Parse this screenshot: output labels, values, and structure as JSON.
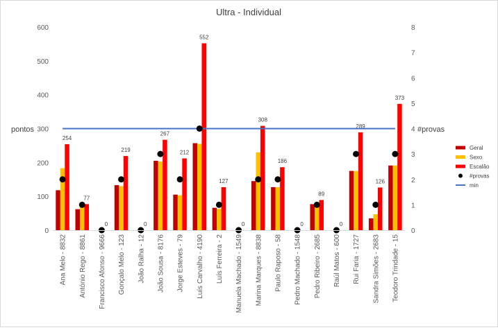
{
  "chart_data": {
    "type": "bar",
    "title": "Ultra - Individual",
    "ylabel": "pontos",
    "y2label": "#provas",
    "ylim": [
      0,
      600
    ],
    "y2lim": [
      0,
      8
    ],
    "yticks": [
      "0",
      "100",
      "200",
      "300",
      "400",
      "500",
      "600"
    ],
    "y2ticks": [
      "0",
      "1",
      "2",
      "3",
      "4",
      "5",
      "6",
      "7",
      "8"
    ],
    "categories": [
      "Ana Melo - 8832",
      "António Rego - 8861",
      "Francisco Afonso - 9666",
      "Gonçalo Melo - 123",
      "João Ralha - 12",
      "João Sousa - 8176",
      "Jorge Esteves - 79",
      "Luís Carvalho - 4190",
      "Luís Ferreira - 2",
      "Manuela Machado - 1549",
      "Marina Marques - 8838",
      "Paulo Raposo - 58",
      "Pedro Machado - 1548",
      "Pedro Ribeiro - 2685",
      "Raúl Matos - 600",
      "Rui Faria - 1727",
      "Sandra Simões - 2683",
      "Teodoro Trindade - 15"
    ],
    "series": [
      {
        "name": "Geral",
        "type": "bar",
        "color": "#C00000",
        "values": [
          118,
          62,
          0,
          133,
          0,
          205,
          105,
          257,
          66,
          0,
          145,
          127,
          0,
          77,
          0,
          175,
          35,
          191
        ]
      },
      {
        "name": "Sexo",
        "type": "bar",
        "color": "#FFC000",
        "values": [
          183,
          70,
          0,
          130,
          0,
          203,
          103,
          255,
          63,
          0,
          230,
          127,
          0,
          80,
          0,
          175,
          47,
          191
        ]
      },
      {
        "name": "Escalão",
        "type": "bar",
        "color": "#FF0000",
        "values": [
          254,
          77,
          0,
          219,
          0,
          267,
          212,
          552,
          127,
          0,
          308,
          186,
          0,
          89,
          0,
          289,
          126,
          373
        ],
        "data_labels": [
          "254",
          "77",
          "0",
          "219",
          "0",
          "267",
          "212",
          "552",
          "127",
          "0",
          "308",
          "186",
          "0",
          "89",
          "0",
          "289",
          "126",
          "373"
        ]
      },
      {
        "name": "#provas",
        "type": "scatter",
        "axis": "secondary",
        "color": "#000000",
        "values": [
          2,
          1,
          0,
          2,
          0,
          3,
          2,
          4,
          1,
          0,
          2,
          2,
          0,
          1,
          0,
          3,
          1,
          3
        ]
      },
      {
        "name": "min",
        "type": "line",
        "color": "#4472C4",
        "value": 300
      }
    ],
    "legend": "right",
    "grid": false
  }
}
